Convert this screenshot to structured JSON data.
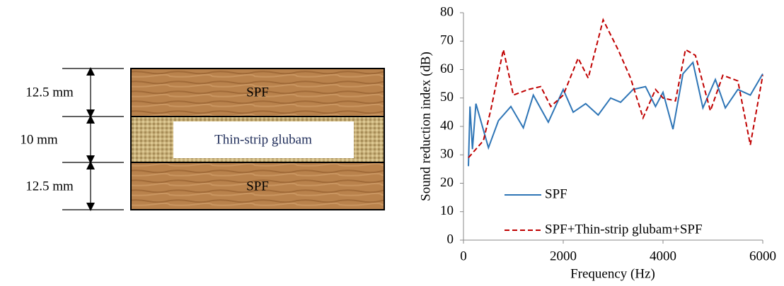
{
  "diagram": {
    "layers": [
      {
        "label": "SPF",
        "thickness": "12.5 mm"
      },
      {
        "label": "Thin-strip glubam",
        "thickness": "10 mm"
      },
      {
        "label": "SPF",
        "thickness": "12.5 mm"
      }
    ]
  },
  "chart_data": {
    "type": "line",
    "xlabel": "Frequency (Hz)",
    "ylabel": "Sound reduction index (dB)",
    "xlim": [
      0,
      6000
    ],
    "xticks": [
      0,
      2000,
      4000,
      6000
    ],
    "ylim": [
      0,
      80
    ],
    "yticks": [
      0,
      10,
      20,
      30,
      40,
      50,
      60,
      70,
      80
    ],
    "grid": false,
    "legend": "lower center",
    "series": [
      {
        "name": "SPF",
        "color": "#2e75b6",
        "dash": "solid",
        "x": [
          100,
          130,
          180,
          250,
          500,
          700,
          950,
          1200,
          1400,
          1700,
          2000,
          2200,
          2450,
          2700,
          2950,
          3150,
          3400,
          3650,
          3850,
          4000,
          4200,
          4400,
          4600,
          4800,
          5050,
          5250,
          5500,
          5750,
          6000
        ],
        "values": [
          26,
          47,
          32,
          48,
          32.5,
          42,
          47,
          39.5,
          51,
          41.5,
          53,
          45,
          48,
          44,
          50,
          48.5,
          53,
          54,
          47,
          52,
          39,
          58.5,
          62.5,
          46.5,
          56.5,
          46.5,
          53,
          51,
          58.5
        ]
      },
      {
        "name": "SPF+Thin-strip glubam+SPF",
        "color": "#c00000",
        "dash": "dashed",
        "x": [
          100,
          400,
          550,
          800,
          1000,
          1300,
          1550,
          1750,
          2000,
          2300,
          2500,
          2800,
          3100,
          3350,
          3600,
          3850,
          4000,
          4250,
          4450,
          4650,
          4950,
          5200,
          5500,
          5750,
          6000
        ],
        "values": [
          29,
          35,
          46,
          67,
          51,
          53,
          54,
          47,
          51,
          64,
          57,
          77.5,
          67,
          57,
          43,
          53,
          50,
          49,
          67,
          65,
          45.5,
          58,
          56,
          33.5,
          58
        ]
      }
    ]
  }
}
